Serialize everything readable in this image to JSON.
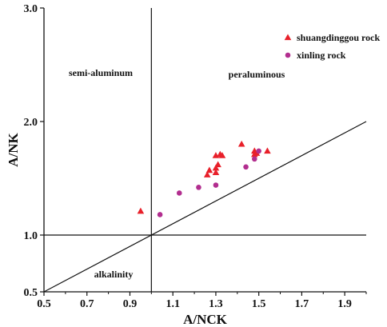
{
  "chart_data": {
    "type": "scatter",
    "xlabel": "A/NCK",
    "ylabel": "A/NK",
    "xlim": [
      0.5,
      2.0
    ],
    "ylim": [
      0.5,
      3.0
    ],
    "x_ticks": [
      "0.5",
      "0.7",
      "0.9",
      "1.1",
      "1.3",
      "1.5",
      "1.7",
      "1.9"
    ],
    "y_ticks": [
      "0.5",
      "1.0",
      "2.0",
      "3.0"
    ],
    "y_tick_values": [
      0.5,
      1.0,
      2.0,
      3.0
    ],
    "grid": false,
    "legend_position": "top-right",
    "region_labels": {
      "semi_aluminum": "semi-aluminum",
      "peraluminous": "peraluminous",
      "alkalinity": "alkalinity"
    },
    "reference_lines": [
      {
        "x": [
          1.0,
          1.0
        ],
        "y": [
          0.5,
          3.0
        ]
      },
      {
        "x": [
          0.5,
          2.0
        ],
        "y": [
          1.0,
          1.0
        ]
      },
      {
        "x": [
          0.5,
          2.0
        ],
        "y": [
          0.5,
          2.0
        ]
      }
    ],
    "series": [
      {
        "name": "shuangdinggou rock",
        "marker": "triangle",
        "color": "#e8202a",
        "x": [
          0.95,
          1.26,
          1.27,
          1.3,
          1.3,
          1.3,
          1.31,
          1.32,
          1.33,
          1.42,
          1.48,
          1.48,
          1.49,
          1.54
        ],
        "y": [
          1.21,
          1.53,
          1.57,
          1.55,
          1.59,
          1.7,
          1.62,
          1.71,
          1.7,
          1.8,
          1.71,
          1.74,
          1.72,
          1.74
        ]
      },
      {
        "name": "xinling rock",
        "marker": "circle",
        "color": "#b22e8f",
        "x": [
          1.04,
          1.13,
          1.22,
          1.3,
          1.44,
          1.48,
          1.5
        ],
        "y": [
          1.18,
          1.37,
          1.42,
          1.44,
          1.6,
          1.67,
          1.74
        ]
      }
    ]
  }
}
